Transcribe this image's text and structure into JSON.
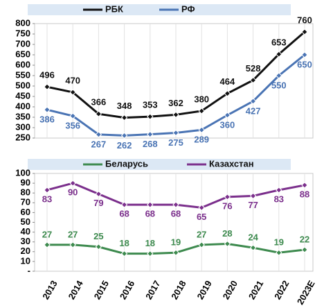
{
  "chart_data": [
    {
      "type": "line",
      "series": [
        {
          "name": "РБК",
          "color": "#111111",
          "values": [
            496,
            470,
            366,
            348,
            353,
            362,
            380,
            464,
            528,
            653,
            760
          ]
        },
        {
          "name": "РФ",
          "color": "#4a74b4",
          "values": [
            386,
            356,
            267,
            262,
            268,
            275,
            289,
            360,
            427,
            550,
            650
          ]
        }
      ],
      "ylim": [
        250,
        800
      ],
      "yticks": [
        250,
        300,
        350,
        400,
        450,
        500,
        550,
        600,
        650,
        700,
        750,
        800
      ]
    },
    {
      "type": "line",
      "categories": [
        "2013",
        "2014",
        "2015",
        "2016",
        "2017",
        "2018",
        "2019",
        "2020",
        "2021",
        "2022",
        "2023E"
      ],
      "series": [
        {
          "name": "Беларусь",
          "color": "#3d8a4e",
          "values": [
            27,
            27,
            25,
            18,
            18,
            19,
            27,
            28,
            24,
            19,
            22
          ]
        },
        {
          "name": "Казахстан",
          "color": "#7b2f8c",
          "values": [
            83,
            90,
            79,
            68,
            68,
            68,
            65,
            76,
            77,
            83,
            88
          ]
        }
      ],
      "ylim": [
        0,
        100
      ],
      "yticks": [
        {
          "value": 0,
          "label": "-"
        },
        10,
        20,
        30,
        40,
        50,
        60,
        70,
        80,
        90,
        100
      ]
    }
  ]
}
